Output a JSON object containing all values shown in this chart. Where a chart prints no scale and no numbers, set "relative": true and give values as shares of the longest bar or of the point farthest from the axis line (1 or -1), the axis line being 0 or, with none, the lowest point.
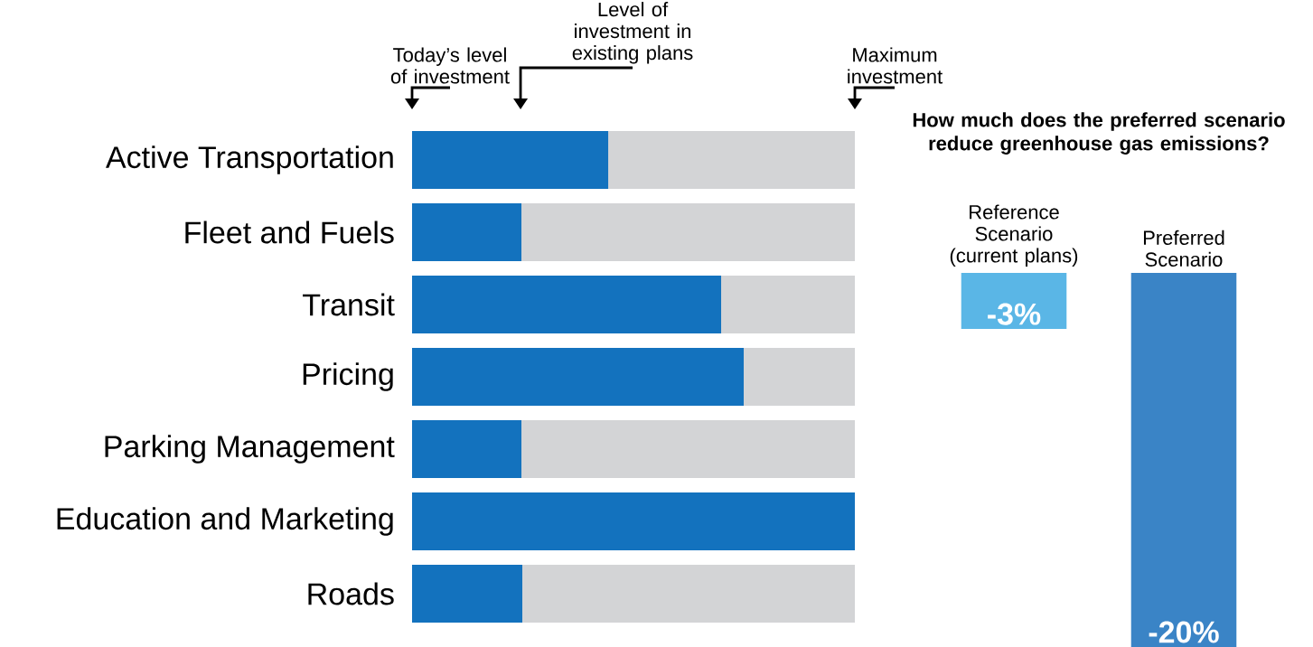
{
  "chart_data": [
    {
      "type": "bar",
      "orientation": "horizontal",
      "stacked": true,
      "relative": true,
      "categories": [
        "Active Transportation",
        "Fleet and Fuels",
        "Transit",
        "Pricing",
        "Parking Management",
        "Education and Marketing",
        "Roads"
      ],
      "series": [
        {
          "color": "#1372be",
          "values": [
            0.443,
            0.247,
            0.698,
            0.749,
            0.247,
            1.0,
            0.249
          ]
        },
        {
          "color": "#d3d4d6",
          "values": [
            0.557,
            0.753,
            0.302,
            0.251,
            0.753,
            0.0,
            0.751
          ]
        }
      ],
      "annotations": [
        "Today’s level of investment",
        "Level of investment in existing plans",
        "Maximum investment"
      ]
    },
    {
      "type": "bar",
      "title": "How much does the preferred scenario reduce greenhouse gas emissions?",
      "categories": [
        "Reference Scenario (current plans)",
        "Preferred Scenario"
      ],
      "values": [
        -3,
        -20
      ],
      "colors": [
        "#5ab6e6",
        "#3a84c6"
      ],
      "value_labels": [
        "-3%",
        "-20%"
      ]
    }
  ]
}
